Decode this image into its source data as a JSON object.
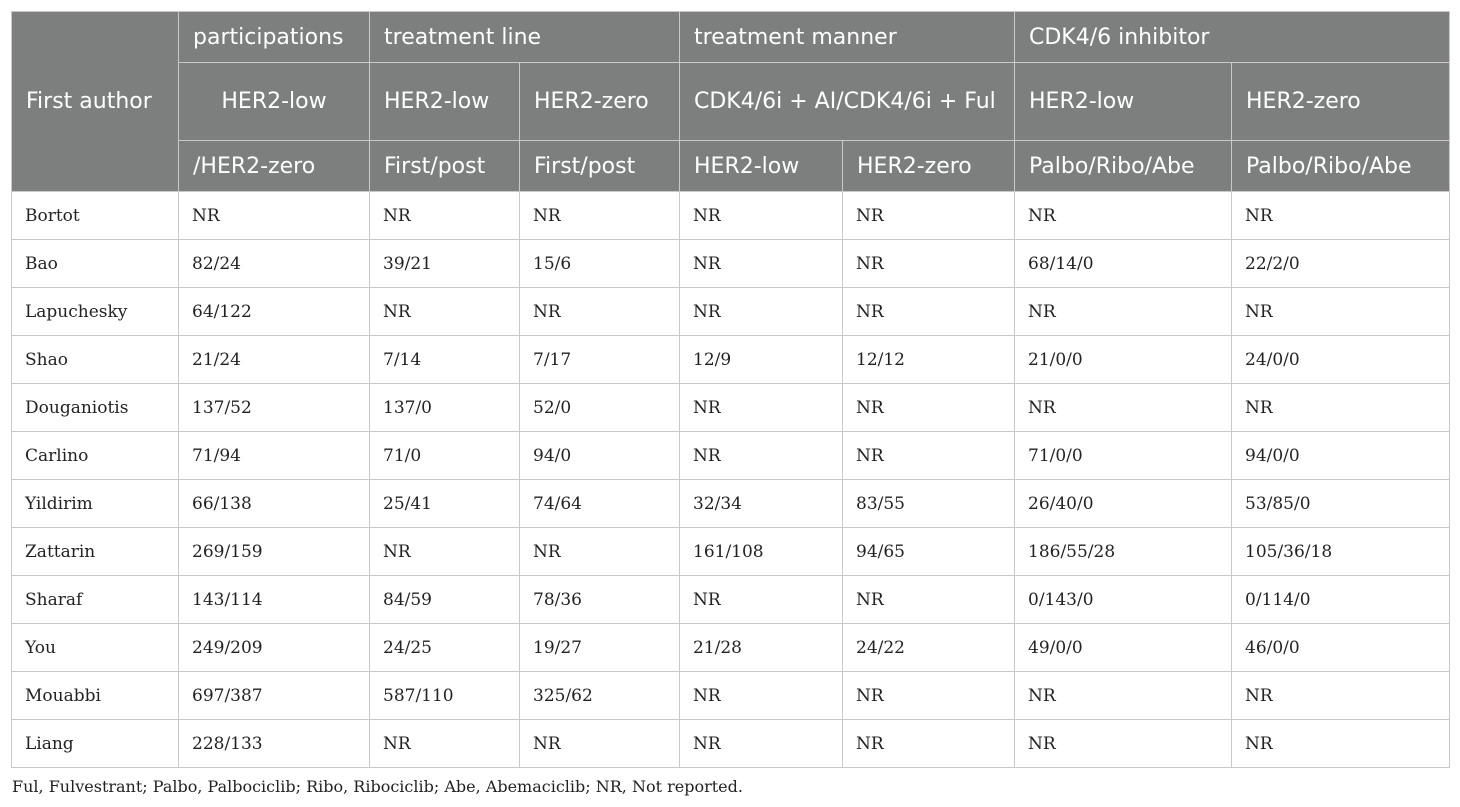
{
  "header": {
    "first_author": "First author",
    "groups": {
      "participations": "participations",
      "treatment_line": "treatment line",
      "treatment_manner": "treatment manner",
      "cdk_inhibitor": "CDK4/6 inhibitor"
    },
    "row2": {
      "participations": "HER2-low",
      "line_low": "HER2-low",
      "line_zero": "HER2-zero",
      "manner": "CDK4/6i + AI/CDK4/6i + Ful",
      "cdk_low": "HER2-low",
      "cdk_zero": "HER2-zero"
    },
    "row3": {
      "participations": "/HER2-zero",
      "line_low": "First/post",
      "line_zero": "First/post",
      "manner_low": "HER2-low",
      "manner_zero": "HER2-zero",
      "cdk_low": "Palbo/Ribo/Abe",
      "cdk_zero": "Palbo/Ribo/Abe"
    }
  },
  "rows": [
    [
      "Bortot",
      "NR",
      "NR",
      "NR",
      "NR",
      "NR",
      "NR",
      "NR"
    ],
    [
      "Bao",
      "82/24",
      "39/21",
      "15/6",
      "NR",
      "NR",
      "68/14/0",
      "22/2/0"
    ],
    [
      "Lapuchesky",
      "64/122",
      "NR",
      "NR",
      "NR",
      "NR",
      "NR",
      "NR"
    ],
    [
      "Shao",
      "21/24",
      "7/14",
      "7/17",
      "12/9",
      "12/12",
      "21/0/0",
      "24/0/0"
    ],
    [
      "Douganiotis",
      "137/52",
      "137/0",
      "52/0",
      "NR",
      "NR",
      "NR",
      "NR"
    ],
    [
      "Carlino",
      "71/94",
      "71/0",
      "94/0",
      "NR",
      "NR",
      "71/0/0",
      "94/0/0"
    ],
    [
      "Yildirim",
      "66/138",
      "25/41",
      "74/64",
      "32/34",
      "83/55",
      "26/40/0",
      "53/85/0"
    ],
    [
      "Zattarin",
      "269/159",
      "NR",
      "NR",
      "161/108",
      "94/65",
      "186/55/28",
      "105/36/18"
    ],
    [
      "Sharaf",
      "143/114",
      "84/59",
      "78/36",
      "NR",
      "NR",
      "0/143/0",
      "0/114/0"
    ],
    [
      "You",
      "249/209",
      "24/25",
      "19/27",
      "21/28",
      "24/22",
      "49/0/0",
      "46/0/0"
    ],
    [
      "Mouabbi",
      "697/387",
      "587/110",
      "325/62",
      "NR",
      "NR",
      "NR",
      "NR"
    ],
    [
      "Liang",
      "228/133",
      "NR",
      "NR",
      "NR",
      "NR",
      "NR",
      "NR"
    ]
  ],
  "footnote": "Ful, Fulvestrant; Palbo, Palbociclib; Ribo, Ribociclib; Abe, Abemaciclib; NR, Not reported."
}
